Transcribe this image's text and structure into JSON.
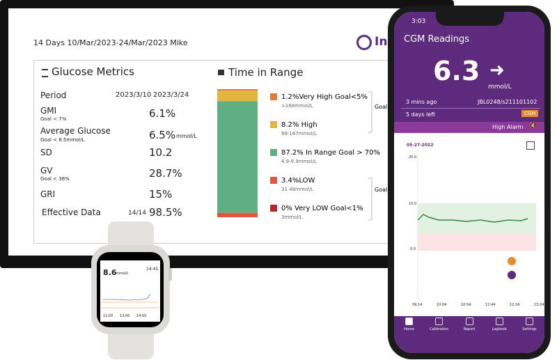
{
  "report": {
    "header": "14 Days 10/Mar/2023-24/Mar/2023 Mike",
    "logo": "In",
    "metrics": {
      "title": "Glucose Metrics",
      "period_label": "Period",
      "period_start": "2023/3/10",
      "period_end": "2023/3/24",
      "rows": [
        {
          "label": "GMI",
          "goal": "Goal < 7%",
          "value": "6.1%"
        },
        {
          "label": "Average Glucose",
          "goal": "Goal < 8.5mmol/L",
          "value": "6.5%",
          "unit": "mmol/L"
        },
        {
          "label": "SD",
          "value": "10.2"
        },
        {
          "label": "GV",
          "goal": "Goal < 36%",
          "value": "28.7%"
        },
        {
          "label": "GRI",
          "value": "15%"
        },
        {
          "label": "Effective Data",
          "count": "14/14",
          "value": "98.5%"
        }
      ]
    },
    "time_in_range": {
      "title": "Time in Range",
      "segments": [
        {
          "label": "1.2%Very High Goal<5%",
          "range": ">168mmol/L",
          "value": 1.2,
          "color": "#e07b39"
        },
        {
          "label": "8.2% High",
          "range": "99-167mmol/L",
          "value": 8.2,
          "color": "#e2b53e"
        },
        {
          "label": "87.2% In Range Goal > 70%",
          "range": "4.9-9.9mmol/L",
          "value": 87.2,
          "color": "#5fae84"
        },
        {
          "label": "3.4%LOW",
          "range": "31 48mmol/L",
          "value": 3.4,
          "color": "#e2553f"
        },
        {
          "label": "0% Very LOW Goal<1%",
          "range": "3mmol/L",
          "value": 0,
          "color": "#b5282c"
        }
      ],
      "group_labels": [
        "Goal",
        "Goal"
      ]
    }
  },
  "watch": {
    "reading": "8.6",
    "unit": "mmol/L",
    "time": "14:41",
    "x_labels": [
      "12:00",
      "13:00",
      "14:00"
    ]
  },
  "phone": {
    "status_time": "3:03",
    "title": "CGM Readings",
    "reading": "6.3",
    "unit": "mmol/L",
    "updated": "3 mins ago",
    "sensor": "JBL0248/s211101102",
    "days_left": "5 days left",
    "badge": "CGM",
    "alarm": "High Alarm",
    "date": "05-27-2022",
    "y_labels": [
      "20.0",
      "10.0",
      "0.0"
    ],
    "x_labels": [
      "09:14",
      "10:04",
      "10:54",
      "11:44",
      "12:34",
      "13:24"
    ],
    "nav": [
      "Home",
      "Calibration",
      "Report",
      "Logbook",
      "Settings"
    ]
  }
}
